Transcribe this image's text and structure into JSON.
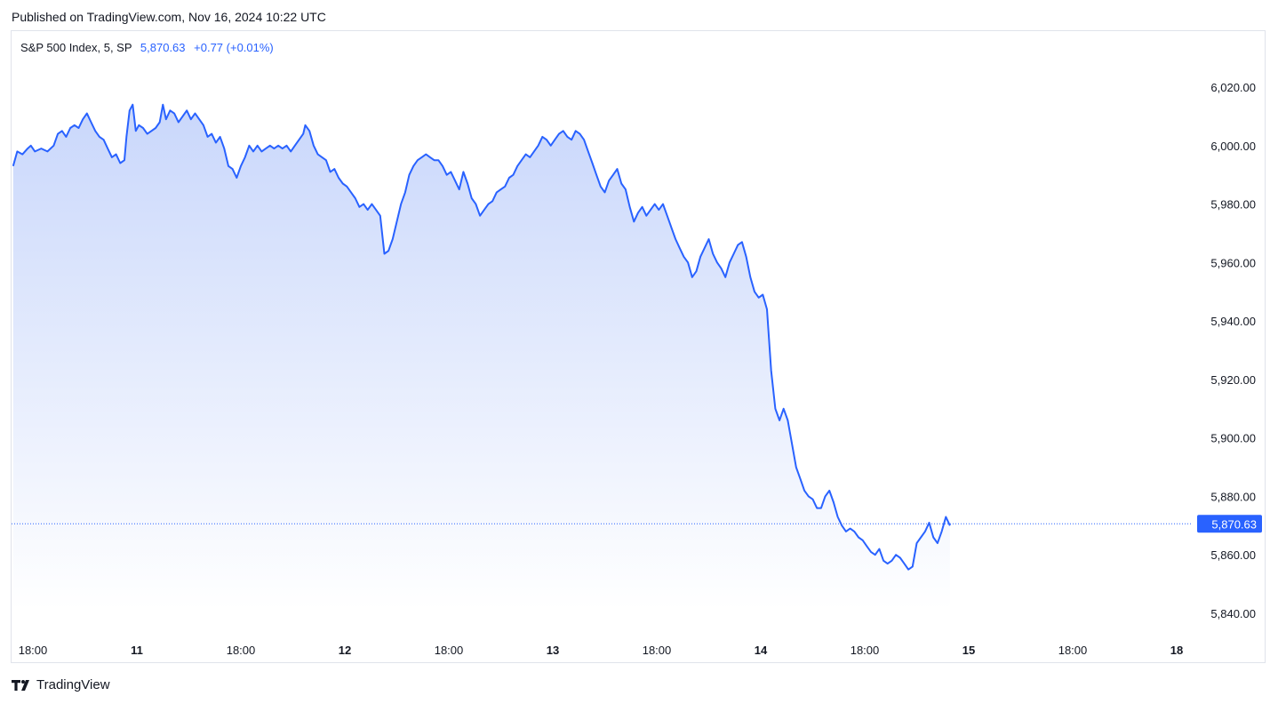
{
  "header": {
    "published": "Published on TradingView.com, Nov 16, 2024 10:22 UTC"
  },
  "legend": {
    "symbol": "S&P 500 Index, 5, SP",
    "last": "5,870.63",
    "change": "+0.77 (+0.01%)"
  },
  "brand": {
    "name": "TradingView"
  },
  "colors": {
    "line": "#2962ff",
    "fill_top": "#c9d7fb",
    "fill_bottom": "#ffffff",
    "price_tag": "#2962ff"
  },
  "chart_data": {
    "type": "area",
    "ylim": [
      5830,
      6040
    ],
    "yticks": [
      {
        "v": 5840,
        "label": "5,840.00"
      },
      {
        "v": 5860,
        "label": "5,860.00"
      },
      {
        "v": 5880,
        "label": "5,880.00"
      },
      {
        "v": 5900,
        "label": "5,900.00"
      },
      {
        "v": 5920,
        "label": "5,920.00"
      },
      {
        "v": 5940,
        "label": "5,940.00"
      },
      {
        "v": 5960,
        "label": "5,960.00"
      },
      {
        "v": 5980,
        "label": "5,980.00"
      },
      {
        "v": 6000,
        "label": "6,000.00"
      },
      {
        "v": 6020,
        "label": "6,020.00"
      }
    ],
    "x_range": [
      -0.2,
      11.4
    ],
    "xticks": [
      {
        "t": 0.0,
        "label": "18:00",
        "bold": false
      },
      {
        "t": 1.0,
        "label": "11",
        "bold": true
      },
      {
        "t": 2.0,
        "label": "18:00",
        "bold": false
      },
      {
        "t": 3.0,
        "label": "12",
        "bold": true
      },
      {
        "t": 4.0,
        "label": "18:00",
        "bold": false
      },
      {
        "t": 5.0,
        "label": "13",
        "bold": true
      },
      {
        "t": 6.0,
        "label": "18:00",
        "bold": false
      },
      {
        "t": 7.0,
        "label": "14",
        "bold": true
      },
      {
        "t": 8.0,
        "label": "18:00",
        "bold": false
      },
      {
        "t": 9.0,
        "label": "15",
        "bold": true
      },
      {
        "t": 10.0,
        "label": "18:00",
        "bold": false
      },
      {
        "t": 11.0,
        "label": "18",
        "bold": true
      }
    ],
    "last_price": 5870.63,
    "last_price_label": "5,870.63",
    "series": [
      {
        "values": [
          [
            -0.19,
            5993
          ],
          [
            -0.15,
            5998
          ],
          [
            -0.1,
            5997
          ],
          [
            -0.05,
            5999
          ],
          [
            -0.02,
            6000
          ],
          [
            0.02,
            5998
          ],
          [
            0.08,
            5999
          ],
          [
            0.14,
            5998
          ],
          [
            0.2,
            6000
          ],
          [
            0.24,
            6004
          ],
          [
            0.28,
            6005
          ],
          [
            0.32,
            6003
          ],
          [
            0.36,
            6006
          ],
          [
            0.4,
            6007
          ],
          [
            0.44,
            6006
          ],
          [
            0.48,
            6009
          ],
          [
            0.52,
            6011
          ],
          [
            0.56,
            6008
          ],
          [
            0.6,
            6005
          ],
          [
            0.64,
            6003
          ],
          [
            0.68,
            6002
          ],
          [
            0.72,
            5999
          ],
          [
            0.76,
            5996
          ],
          [
            0.8,
            5997
          ],
          [
            0.84,
            5994
          ],
          [
            0.88,
            5995
          ],
          [
            0.9,
            6003
          ],
          [
            0.93,
            6012
          ],
          [
            0.96,
            6014
          ],
          [
            0.99,
            6005
          ],
          [
            1.02,
            6007
          ],
          [
            1.06,
            6006
          ],
          [
            1.1,
            6004
          ],
          [
            1.14,
            6005
          ],
          [
            1.18,
            6006
          ],
          [
            1.22,
            6008
          ],
          [
            1.25,
            6014
          ],
          [
            1.28,
            6009
          ],
          [
            1.32,
            6012
          ],
          [
            1.36,
            6011
          ],
          [
            1.4,
            6008
          ],
          [
            1.44,
            6010
          ],
          [
            1.48,
            6012
          ],
          [
            1.52,
            6009
          ],
          [
            1.56,
            6011
          ],
          [
            1.6,
            6009
          ],
          [
            1.64,
            6007
          ],
          [
            1.68,
            6003
          ],
          [
            1.72,
            6004
          ],
          [
            1.76,
            6001
          ],
          [
            1.8,
            6003
          ],
          [
            1.84,
            5999
          ],
          [
            1.88,
            5993
          ],
          [
            1.92,
            5992
          ],
          [
            1.96,
            5989
          ],
          [
            2.0,
            5993
          ],
          [
            2.04,
            5996
          ],
          [
            2.08,
            6000
          ],
          [
            2.12,
            5998
          ],
          [
            2.16,
            6000
          ],
          [
            2.2,
            5998
          ],
          [
            2.24,
            5999
          ],
          [
            2.28,
            6000
          ],
          [
            2.32,
            5999
          ],
          [
            2.36,
            6000
          ],
          [
            2.4,
            5999
          ],
          [
            2.44,
            6000
          ],
          [
            2.48,
            5998
          ],
          [
            2.52,
            6000
          ],
          [
            2.56,
            6002
          ],
          [
            2.6,
            6004
          ],
          [
            2.62,
            6007
          ],
          [
            2.66,
            6005
          ],
          [
            2.7,
            6000
          ],
          [
            2.74,
            5997
          ],
          [
            2.78,
            5996
          ],
          [
            2.82,
            5995
          ],
          [
            2.86,
            5991
          ],
          [
            2.9,
            5992
          ],
          [
            2.94,
            5989
          ],
          [
            2.98,
            5987
          ],
          [
            3.02,
            5986
          ],
          [
            3.06,
            5984
          ],
          [
            3.1,
            5982
          ],
          [
            3.14,
            5979
          ],
          [
            3.18,
            5980
          ],
          [
            3.22,
            5978
          ],
          [
            3.26,
            5980
          ],
          [
            3.3,
            5978
          ],
          [
            3.34,
            5976
          ],
          [
            3.38,
            5963
          ],
          [
            3.42,
            5964
          ],
          [
            3.46,
            5968
          ],
          [
            3.5,
            5974
          ],
          [
            3.54,
            5980
          ],
          [
            3.58,
            5984
          ],
          [
            3.62,
            5990
          ],
          [
            3.66,
            5993
          ],
          [
            3.7,
            5995
          ],
          [
            3.74,
            5996
          ],
          [
            3.78,
            5997
          ],
          [
            3.82,
            5996
          ],
          [
            3.86,
            5995
          ],
          [
            3.9,
            5995
          ],
          [
            3.94,
            5993
          ],
          [
            3.98,
            5990
          ],
          [
            4.02,
            5991
          ],
          [
            4.06,
            5988
          ],
          [
            4.1,
            5985
          ],
          [
            4.14,
            5991
          ],
          [
            4.18,
            5987
          ],
          [
            4.22,
            5982
          ],
          [
            4.26,
            5980
          ],
          [
            4.3,
            5976
          ],
          [
            4.34,
            5978
          ],
          [
            4.38,
            5980
          ],
          [
            4.42,
            5981
          ],
          [
            4.46,
            5984
          ],
          [
            4.5,
            5985
          ],
          [
            4.54,
            5986
          ],
          [
            4.58,
            5989
          ],
          [
            4.62,
            5990
          ],
          [
            4.66,
            5993
          ],
          [
            4.7,
            5995
          ],
          [
            4.74,
            5997
          ],
          [
            4.78,
            5996
          ],
          [
            4.82,
            5998
          ],
          [
            4.86,
            6000
          ],
          [
            4.9,
            6003
          ],
          [
            4.94,
            6002
          ],
          [
            4.98,
            6000
          ],
          [
            5.02,
            6002
          ],
          [
            5.06,
            6004
          ],
          [
            5.1,
            6005
          ],
          [
            5.14,
            6003
          ],
          [
            5.18,
            6002
          ],
          [
            5.22,
            6005
          ],
          [
            5.26,
            6004
          ],
          [
            5.3,
            6002
          ],
          [
            5.34,
            5998
          ],
          [
            5.38,
            5994
          ],
          [
            5.42,
            5990
          ],
          [
            5.46,
            5986
          ],
          [
            5.5,
            5984
          ],
          [
            5.54,
            5988
          ],
          [
            5.58,
            5990
          ],
          [
            5.62,
            5992
          ],
          [
            5.66,
            5987
          ],
          [
            5.7,
            5985
          ],
          [
            5.74,
            5979
          ],
          [
            5.78,
            5974
          ],
          [
            5.82,
            5977
          ],
          [
            5.86,
            5979
          ],
          [
            5.9,
            5976
          ],
          [
            5.94,
            5978
          ],
          [
            5.98,
            5980
          ],
          [
            6.02,
            5978
          ],
          [
            6.06,
            5980
          ],
          [
            6.1,
            5976
          ],
          [
            6.14,
            5972
          ],
          [
            6.18,
            5968
          ],
          [
            6.22,
            5965
          ],
          [
            6.26,
            5962
          ],
          [
            6.3,
            5960
          ],
          [
            6.34,
            5955
          ],
          [
            6.38,
            5957
          ],
          [
            6.42,
            5962
          ],
          [
            6.46,
            5965
          ],
          [
            6.5,
            5968
          ],
          [
            6.54,
            5963
          ],
          [
            6.58,
            5960
          ],
          [
            6.62,
            5958
          ],
          [
            6.66,
            5955
          ],
          [
            6.7,
            5960
          ],
          [
            6.74,
            5963
          ],
          [
            6.78,
            5966
          ],
          [
            6.82,
            5967
          ],
          [
            6.86,
            5962
          ],
          [
            6.9,
            5955
          ],
          [
            6.94,
            5950
          ],
          [
            6.98,
            5948
          ],
          [
            7.02,
            5949
          ],
          [
            7.06,
            5944
          ],
          [
            7.1,
            5923
          ],
          [
            7.14,
            5910
          ],
          [
            7.18,
            5906
          ],
          [
            7.22,
            5910
          ],
          [
            7.26,
            5906
          ],
          [
            7.3,
            5898
          ],
          [
            7.34,
            5890
          ],
          [
            7.38,
            5886
          ],
          [
            7.42,
            5882
          ],
          [
            7.46,
            5880
          ],
          [
            7.5,
            5879
          ],
          [
            7.54,
            5876
          ],
          [
            7.58,
            5876
          ],
          [
            7.62,
            5880
          ],
          [
            7.66,
            5882
          ],
          [
            7.7,
            5878
          ],
          [
            7.74,
            5873
          ],
          [
            7.78,
            5870
          ],
          [
            7.82,
            5868
          ],
          [
            7.86,
            5869
          ],
          [
            7.9,
            5868
          ],
          [
            7.94,
            5866
          ],
          [
            7.98,
            5865
          ],
          [
            8.02,
            5863
          ],
          [
            8.06,
            5861
          ],
          [
            8.1,
            5860
          ],
          [
            8.14,
            5862
          ],
          [
            8.18,
            5858
          ],
          [
            8.22,
            5857
          ],
          [
            8.26,
            5858
          ],
          [
            8.3,
            5860
          ],
          [
            8.34,
            5859
          ],
          [
            8.38,
            5857
          ],
          [
            8.42,
            5855
          ],
          [
            8.46,
            5856
          ],
          [
            8.5,
            5864
          ],
          [
            8.54,
            5866
          ],
          [
            8.58,
            5868
          ],
          [
            8.62,
            5871
          ],
          [
            8.66,
            5866
          ],
          [
            8.7,
            5864
          ],
          [
            8.74,
            5868
          ],
          [
            8.78,
            5873
          ],
          [
            8.82,
            5870
          ]
        ]
      }
    ]
  }
}
